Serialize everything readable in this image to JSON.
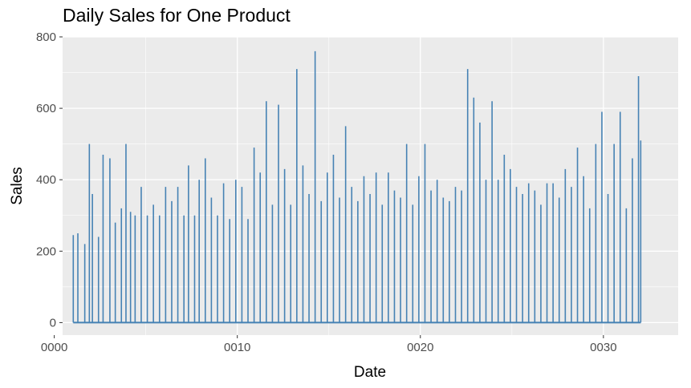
{
  "chart_data": {
    "type": "line",
    "title": "Daily Sales for One Product",
    "xlabel": "Date",
    "ylabel": "Sales",
    "xlim": [
      "0000-06-15",
      "0034-02-01"
    ],
    "ylim": [
      -35,
      800
    ],
    "x_ticks": [
      {
        "value": "0000-01-01",
        "label": "0000"
      },
      {
        "value": "0010-01-01",
        "label": "0010"
      },
      {
        "value": "0020-01-01",
        "label": "0020"
      },
      {
        "value": "0030-01-01",
        "label": "0030"
      }
    ],
    "y_ticks": [
      0,
      200,
      400,
      600,
      800
    ],
    "colors": {
      "line": "#4682B4",
      "panel": "#EBEBEB",
      "grid": "#FFFFFF",
      "axis_text": "#4D4D4D"
    },
    "grid": true,
    "legend": "none",
    "series": [
      {
        "x": [
          "0001-01-15",
          "0001-04-15",
          "0001-09-01",
          "0001-12-01",
          "0002-02-01",
          "0002-06-01",
          "0002-09-01",
          "0003-01-15",
          "0003-05-01",
          "0003-09-01",
          "0003-12-01",
          "0004-03-01",
          "0004-06-01",
          "0004-10-01",
          "0005-02-01",
          "0005-06-01",
          "0005-10-01",
          "0006-02-01",
          "0006-06-01",
          "0006-10-01",
          "0007-02-01",
          "0007-05-01",
          "0007-09-01",
          "0007-12-01",
          "0008-04-01",
          "0008-08-01",
          "0008-12-01",
          "0009-04-01",
          "0009-08-01",
          "0009-12-01",
          "0010-04-01",
          "0010-08-01",
          "0010-12-01",
          "0011-04-01",
          "0011-08-01",
          "0011-12-01",
          "0012-04-01",
          "0012-08-01",
          "0012-12-01",
          "0013-04-01",
          "0013-08-01",
          "0013-12-01",
          "0014-04-01",
          "0014-08-01",
          "0014-12-01",
          "0015-04-01",
          "0015-08-01",
          "0015-12-01",
          "0016-04-01",
          "0016-08-01",
          "0016-12-01",
          "0017-04-01",
          "0017-08-01",
          "0017-12-01",
          "0018-04-01",
          "0018-08-01",
          "0018-12-01",
          "0019-04-01",
          "0019-08-01",
          "0019-12-01",
          "0020-04-01",
          "0020-08-01",
          "0020-12-01",
          "0021-04-01",
          "0021-08-01",
          "0021-12-01",
          "0022-04-01",
          "0022-08-01",
          "0022-12-01",
          "0023-04-01",
          "0023-08-01",
          "0023-12-01",
          "0024-04-01",
          "0024-08-01",
          "0024-12-01",
          "0025-04-01",
          "0025-08-01",
          "0025-12-01",
          "0026-04-01",
          "0026-08-01",
          "0026-12-01",
          "0027-04-01",
          "0027-08-01",
          "0027-12-01",
          "0028-04-01",
          "0028-08-01",
          "0028-12-01",
          "0029-04-01",
          "0029-08-01",
          "0029-12-01",
          "0030-04-01",
          "0030-08-01",
          "0030-12-01",
          "0031-04-01",
          "0031-08-01",
          "0031-12-01",
          "0032-01-15"
        ],
        "y": [
          245,
          250,
          220,
          500,
          360,
          240,
          470,
          460,
          280,
          320,
          500,
          310,
          300,
          380,
          300,
          330,
          300,
          380,
          340,
          380,
          300,
          440,
          300,
          400,
          460,
          350,
          300,
          390,
          290,
          400,
          380,
          290,
          490,
          420,
          620,
          330,
          610,
          430,
          330,
          710,
          440,
          360,
          760,
          340,
          420,
          470,
          350,
          550,
          380,
          340,
          410,
          360,
          420,
          330,
          420,
          370,
          350,
          500,
          330,
          410,
          500,
          370,
          400,
          350,
          340,
          380,
          370,
          710,
          630,
          560,
          400,
          620,
          400,
          470,
          430,
          380,
          360,
          390,
          370,
          330,
          390,
          390,
          350,
          430,
          380,
          490,
          410,
          320,
          500,
          590,
          360,
          500,
          590,
          320,
          460,
          690,
          510
        ]
      }
    ]
  }
}
